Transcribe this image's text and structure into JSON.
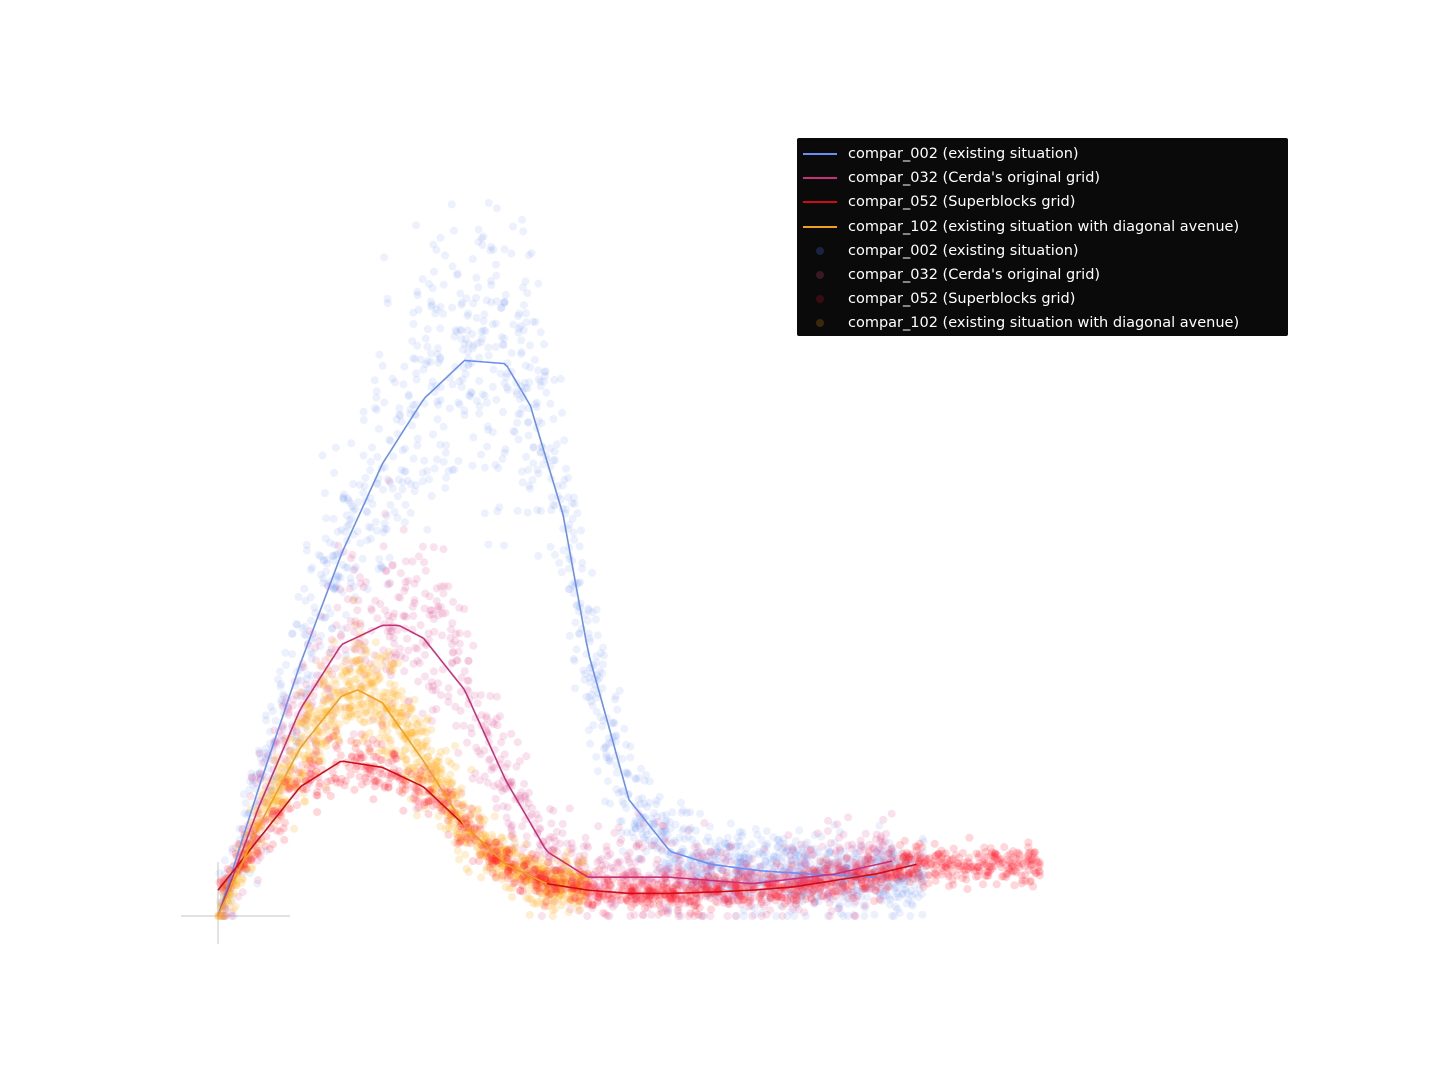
{
  "chart_data": {
    "type": "scatter",
    "title": "",
    "xlabel": "",
    "ylabel": "",
    "axes_visible": false,
    "grid": false,
    "xlim": [
      0,
      1
    ],
    "ylim": [
      0,
      1
    ],
    "legend_placement": "top-right",
    "legend_background": "#0a0a0a",
    "series": [
      {
        "name": "compar_002 (existing situation)",
        "color": "#6b8ff0",
        "kind": "line",
        "x": [
          0.0,
          0.05,
          0.1,
          0.15,
          0.2,
          0.25,
          0.3,
          0.35,
          0.38,
          0.42,
          0.45,
          0.5,
          0.55,
          0.6,
          0.66,
          0.72,
          0.8
        ],
        "y": [
          0.0,
          0.2,
          0.39,
          0.56,
          0.7,
          0.8,
          0.86,
          0.855,
          0.79,
          0.62,
          0.41,
          0.18,
          0.1,
          0.08,
          0.07,
          0.065,
          0.06
        ]
      },
      {
        "name": "compar_032 (Cerda's original grid)",
        "color": "#c9307a",
        "kind": "line",
        "x": [
          0.0,
          0.05,
          0.1,
          0.15,
          0.2,
          0.22,
          0.25,
          0.3,
          0.35,
          0.4,
          0.45,
          0.55,
          0.65,
          0.75,
          0.82
        ],
        "y": [
          0.0,
          0.17,
          0.32,
          0.42,
          0.45,
          0.45,
          0.43,
          0.35,
          0.21,
          0.1,
          0.06,
          0.06,
          0.05,
          0.065,
          0.085
        ]
      },
      {
        "name": "compar_052 (Superblocks grid)",
        "color": "#cc0d16",
        "kind": "line",
        "x": [
          0.0,
          0.05,
          0.1,
          0.15,
          0.2,
          0.25,
          0.3,
          0.35,
          0.4,
          0.45,
          0.5,
          0.55,
          0.6,
          0.65,
          0.7,
          0.75,
          0.8,
          0.85
        ],
        "y": [
          0.04,
          0.12,
          0.2,
          0.24,
          0.23,
          0.2,
          0.14,
          0.08,
          0.05,
          0.04,
          0.035,
          0.035,
          0.037,
          0.04,
          0.045,
          0.055,
          0.065,
          0.08
        ]
      },
      {
        "name": "compar_102 (existing situation with diagonal avenue)",
        "color": "#f0a020",
        "kind": "line",
        "x": [
          0.0,
          0.05,
          0.1,
          0.15,
          0.17,
          0.2,
          0.25,
          0.3,
          0.35,
          0.4
        ],
        "y": [
          0.0,
          0.14,
          0.26,
          0.34,
          0.35,
          0.33,
          0.24,
          0.14,
          0.08,
          0.05
        ]
      },
      {
        "name": "compar_002 (existing situation)",
        "color": "#6b8ff0",
        "kind": "scatter"
      },
      {
        "name": "compar_032 (Cerda's original grid)",
        "color": "#d94a8c",
        "kind": "scatter"
      },
      {
        "name": "compar_052 (Superblocks grid)",
        "color": "#ff1a2e",
        "kind": "scatter"
      },
      {
        "name": "compar_102 (existing situation with diagonal avenue)",
        "color": "#ffb020",
        "kind": "scatter"
      }
    ]
  },
  "legend": {
    "entries": [
      {
        "label": "compar_002 (existing situation)",
        "kind": "line",
        "color": "#6b8ff0"
      },
      {
        "label": "compar_032 (Cerda's original grid)",
        "kind": "line",
        "color": "#c9307a"
      },
      {
        "label": "compar_052 (Superblocks grid)",
        "kind": "line",
        "color": "#cc0d16"
      },
      {
        "label": "compar_102 (existing situation with diagonal avenue)",
        "kind": "line",
        "color": "#f0a020"
      },
      {
        "label": "compar_002 (existing situation)",
        "kind": "dot",
        "color": "#1a2440"
      },
      {
        "label": "compar_032 (Cerda's original grid)",
        "kind": "dot",
        "color": "#3a1826"
      },
      {
        "label": "compar_052 (Superblocks grid)",
        "kind": "dot",
        "color": "#3a0c10"
      },
      {
        "label": "compar_102 (existing situation with diagonal avenue)",
        "kind": "dot",
        "color": "#3a2a0a"
      }
    ]
  }
}
